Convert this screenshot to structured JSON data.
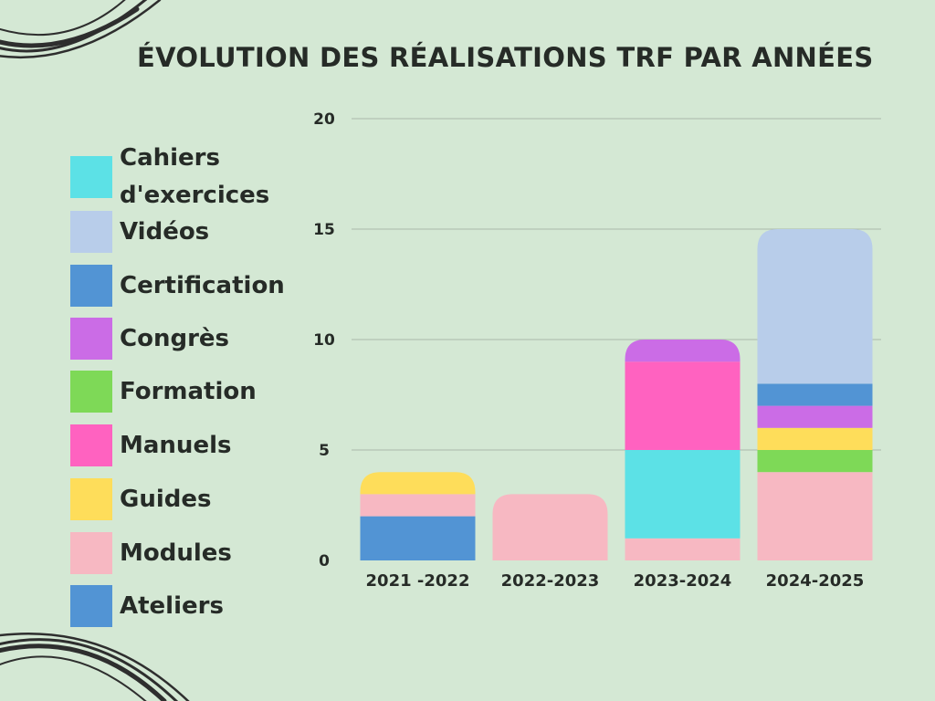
{
  "chart_data": {
    "type": "bar",
    "stacked": true,
    "title": "ÉVOLUTION DES RÉALISATIONS TRF PAR ANNÉES",
    "xlabel": "",
    "ylabel": "",
    "categories": [
      "2021 -2022",
      "2022-2023",
      "2023-2024",
      "2024-2025"
    ],
    "ylim": [
      0,
      20
    ],
    "yticks": [
      0,
      5,
      10,
      15,
      20
    ],
    "grid": true,
    "legend_position": "left",
    "series": [
      {
        "name": "Ateliers",
        "color": "#5294d4",
        "values": [
          2,
          0,
          0,
          0
        ]
      },
      {
        "name": "Modules",
        "color": "#f7b8c2",
        "values": [
          1,
          3,
          1,
          4
        ]
      },
      {
        "name": "Guides",
        "color": "#fedd5a",
        "values": [
          1,
          0,
          0,
          1
        ]
      },
      {
        "name": "Manuels",
        "color": "#ff62c0",
        "values": [
          0,
          0,
          4,
          0
        ]
      },
      {
        "name": "Formation",
        "color": "#7ed957",
        "values": [
          0,
          0,
          0,
          1
        ]
      },
      {
        "name": "Congrès",
        "color": "#cb6ce6",
        "values": [
          0,
          0,
          1,
          1
        ]
      },
      {
        "name": "Certification",
        "color": "#5294d4",
        "values": [
          0,
          0,
          0,
          1
        ]
      },
      {
        "name": "Vidéos",
        "color": "#b8cdea",
        "values": [
          0,
          0,
          0,
          7
        ]
      },
      {
        "name": "Cahiers d'exercices",
        "color": "#5ce1e6",
        "values": [
          0,
          0,
          4,
          0
        ]
      }
    ],
    "stack_order": [
      [
        "Ateliers",
        "Modules",
        "Guides"
      ],
      [
        "Modules"
      ],
      [
        "Modules",
        "Cahiers d'exercices",
        "Manuels",
        "Congrès"
      ],
      [
        "Modules",
        "Formation",
        "Guides",
        "Congrès",
        "Certification",
        "Vidéos"
      ]
    ]
  },
  "legend": {
    "items": [
      {
        "label": "Cahiers d'exercices",
        "color": "#5ce1e6"
      },
      {
        "label": "Vidéos",
        "color": "#b8cdea"
      },
      {
        "label": "Certification",
        "color": "#5294d4"
      },
      {
        "label": "Congrès",
        "color": "#cb6ce6"
      },
      {
        "label": "Formation",
        "color": "#7ed957"
      },
      {
        "label": "Manuels",
        "color": "#ff62c0"
      },
      {
        "label": "Guides",
        "color": "#fedd5a"
      },
      {
        "label": "Modules",
        "color": "#f7b8c2"
      },
      {
        "label": "Ateliers",
        "color": "#5294d4"
      }
    ]
  },
  "colors": {
    "background": "#d4e8d4",
    "text": "#262b27",
    "grid": "#aab9aa",
    "decoration": "#2e2e2e"
  }
}
